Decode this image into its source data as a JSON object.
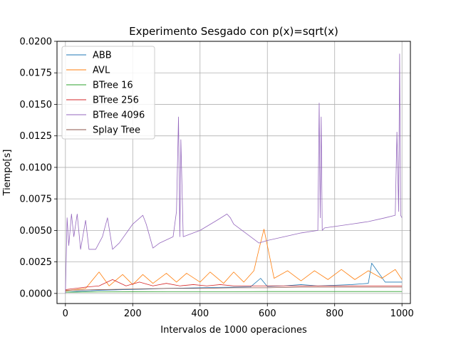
{
  "chart_data": {
    "type": "line",
    "title": "Experimento Sesgado con p(x)=sqrt(x)",
    "xlabel": "Intervalos de 1000 operaciones",
    "ylabel": "Tiempo[s]",
    "xlim": [
      -25,
      1025
    ],
    "ylim": [
      -0.0008,
      0.02
    ],
    "xticks": [
      0,
      200,
      400,
      600,
      800,
      1000
    ],
    "xtick_labels": [
      "0",
      "200",
      "400",
      "600",
      "800",
      "1000"
    ],
    "yticks": [
      0.0,
      0.0025,
      0.005,
      0.0075,
      0.01,
      0.0125,
      0.015,
      0.0175,
      0.02
    ],
    "ytick_labels": [
      "0.0000",
      "0.0025",
      "0.0050",
      "0.0075",
      "0.0100",
      "0.0125",
      "0.0150",
      "0.0175",
      "0.0200"
    ],
    "grid": true,
    "legend_position": "top-left",
    "series": [
      {
        "name": "ABB",
        "color": "#1f77b4",
        "x": [
          0,
          50,
          100,
          150,
          200,
          250,
          300,
          350,
          400,
          450,
          500,
          550,
          580,
          600,
          650,
          700,
          750,
          800,
          850,
          900,
          910,
          950,
          1000
        ],
        "y": [
          0.0001,
          0.00018,
          0.00025,
          0.00028,
          0.00032,
          0.00035,
          0.0004,
          0.00042,
          0.00045,
          0.00048,
          0.0005,
          0.00052,
          0.0012,
          0.00055,
          0.0006,
          0.0007,
          0.0006,
          0.00065,
          0.0007,
          0.0008,
          0.0024,
          0.0009,
          0.0009
        ]
      },
      {
        "name": "AVL",
        "color": "#ff7f0e",
        "x": [
          0,
          60,
          100,
          130,
          170,
          200,
          230,
          260,
          300,
          330,
          360,
          400,
          430,
          470,
          500,
          530,
          560,
          575,
          590,
          620,
          660,
          700,
          740,
          780,
          820,
          860,
          900,
          940,
          980,
          1000
        ],
        "y": [
          0.0002,
          0.0004,
          0.0017,
          0.0006,
          0.0015,
          0.0007,
          0.0015,
          0.0008,
          0.0016,
          0.0009,
          0.0016,
          0.0009,
          0.0017,
          0.0008,
          0.0017,
          0.0009,
          0.0018,
          0.0035,
          0.0051,
          0.0012,
          0.0018,
          0.001,
          0.0018,
          0.0011,
          0.0019,
          0.0011,
          0.0018,
          0.0012,
          0.0019,
          0.0011
        ]
      },
      {
        "name": "BTree 16",
        "color": "#2ca02c",
        "x": [
          0,
          100,
          200,
          300,
          400,
          500,
          600,
          700,
          800,
          900,
          1000
        ],
        "y": [
          0.0001,
          0.00012,
          0.00013,
          0.00014,
          0.00014,
          0.00014,
          0.00015,
          0.00015,
          0.00015,
          0.00015,
          0.00015
        ]
      },
      {
        "name": "BTree 256",
        "color": "#d62728",
        "x": [
          0,
          60,
          100,
          140,
          180,
          220,
          260,
          300,
          340,
          380,
          420,
          460,
          500,
          540,
          580,
          620,
          660,
          700,
          740,
          780,
          820,
          860,
          900,
          940,
          980,
          1000
        ],
        "y": [
          0.0003,
          0.0005,
          0.0006,
          0.0011,
          0.0006,
          0.0009,
          0.0006,
          0.0008,
          0.0006,
          0.0007,
          0.0006,
          0.0007,
          0.0006,
          0.0006,
          0.0006,
          0.0006,
          0.0006,
          0.0006,
          0.0006,
          0.0006,
          0.0006,
          0.0006,
          0.0006,
          0.0006,
          0.0006,
          0.0006
        ]
      },
      {
        "name": "BTree 4096",
        "color": "#9467bd",
        "x": [
          0,
          5,
          10,
          18,
          25,
          35,
          45,
          60,
          70,
          90,
          110,
          125,
          140,
          160,
          200,
          230,
          240,
          260,
          280,
          320,
          330,
          336,
          340,
          343,
          350,
          400,
          450,
          480,
          490,
          500,
          550,
          575,
          600,
          650,
          700,
          750,
          754,
          757,
          760,
          763,
          770,
          850,
          900,
          950,
          980,
          985,
          990,
          993,
          996,
          1000
        ],
        "y": [
          0.0,
          0.006,
          0.0038,
          0.0063,
          0.0045,
          0.0063,
          0.0035,
          0.0058,
          0.0035,
          0.0035,
          0.0045,
          0.006,
          0.0035,
          0.004,
          0.0055,
          0.0062,
          0.0055,
          0.0036,
          0.004,
          0.0045,
          0.0065,
          0.014,
          0.0045,
          0.0122,
          0.0045,
          0.005,
          0.0058,
          0.0063,
          0.006,
          0.0055,
          0.0045,
          0.004,
          0.0042,
          0.0045,
          0.0048,
          0.005,
          0.0151,
          0.006,
          0.014,
          0.005,
          0.0052,
          0.0055,
          0.0057,
          0.006,
          0.0062,
          0.0128,
          0.0065,
          0.019,
          0.0062,
          0.006
        ]
      },
      {
        "name": "Splay Tree",
        "color": "#8c564b",
        "x": [
          0,
          100,
          200,
          300,
          400,
          500,
          600,
          700,
          800,
          900,
          1000
        ],
        "y": [
          0.00025,
          0.0003,
          0.00035,
          0.0004,
          0.0004,
          0.00045,
          0.00045,
          0.0005,
          0.0005,
          0.0005,
          0.0005
        ]
      }
    ]
  }
}
